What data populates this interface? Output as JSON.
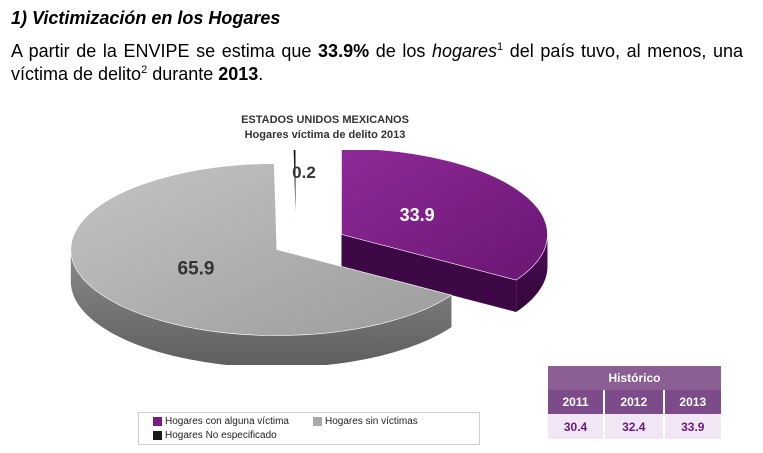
{
  "heading": "1) Victimización en los Hogares",
  "intro": {
    "t1": "A partir de la ENVIPE se estima que ",
    "pct": "33.9%",
    "t2": " de los ",
    "hogares": "hogares",
    "sup1": "1",
    "t3": " del país tuvo, al menos, una víctima de delito",
    "sup2": "2",
    "t4": " durante ",
    "year": "2013",
    "t5": "."
  },
  "chart": {
    "title_line1": "ESTADOS UNIDOS MEXICANOS",
    "title_line2": "Hogares víctima de delito 2013"
  },
  "chart_data": {
    "type": "pie",
    "title": "ESTADOS UNIDOS MEXICANOS Hogares víctima de delito 2013",
    "categories": [
      "Hogares con alguna víctima",
      "Hogares sin víctimas",
      "Hogares No especificado"
    ],
    "values": [
      33.9,
      65.9,
      0.2
    ],
    "colors": [
      "#7a1c84",
      "#a8a8a8",
      "#1a1a1a"
    ],
    "labels": [
      "33.9",
      "65.9",
      "0.2"
    ],
    "legend_position": "bottom"
  },
  "legend": {
    "items": [
      "Hogares con alguna víctima",
      "Hogares sin víctimas",
      "Hogares No especificado"
    ]
  },
  "historico": {
    "header": "Histórico",
    "years": [
      "2011",
      "2012",
      "2013"
    ],
    "values": [
      "30.4",
      "32.4",
      "33.9"
    ]
  }
}
